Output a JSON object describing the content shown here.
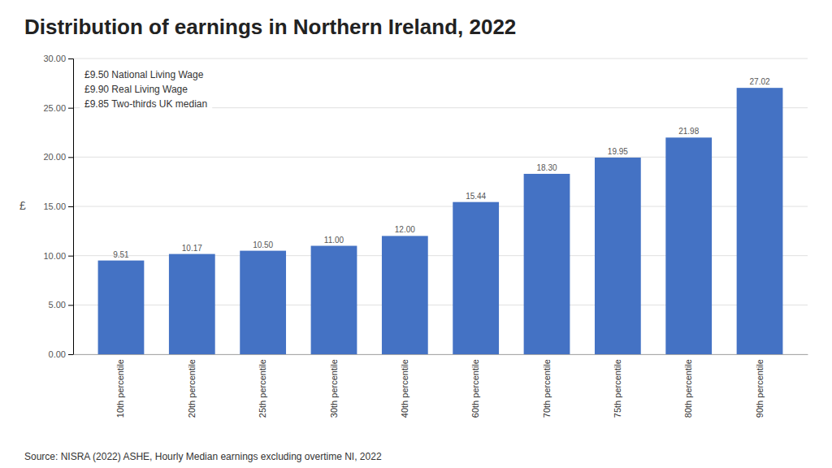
{
  "chart_data": {
    "type": "bar",
    "title": "Distribution of earnings in Northern Ireland, 2022",
    "categories": [
      "10th percentile",
      "20th percentile",
      "25th percentile",
      "30th percentile",
      "40th percentile",
      "60th percentile",
      "70th percentile",
      "75th percentile",
      "80th percentile",
      "90th percentile"
    ],
    "values": [
      9.51,
      10.17,
      10.5,
      11.0,
      12.0,
      15.44,
      18.3,
      19.95,
      21.98,
      27.02
    ],
    "value_labels": [
      "9.51",
      "10.17",
      "10.50",
      "11.00",
      "12.00",
      "15.44",
      "18.30",
      "19.95",
      "21.98",
      "27.02"
    ],
    "data_labels": true,
    "color": "#4472c4",
    "ylabel": "£",
    "ylim": [
      0,
      30
    ],
    "yticks": [
      {
        "value": 0,
        "label": "0.00"
      },
      {
        "value": 5,
        "label": "5.00"
      },
      {
        "value": 10,
        "label": "10.00"
      },
      {
        "value": 15,
        "label": "15.00"
      },
      {
        "value": 20,
        "label": "20.00"
      },
      {
        "value": 25,
        "label": "25.00"
      },
      {
        "value": 30,
        "label": "30.00"
      }
    ],
    "grid": true,
    "annotations": [
      "£9.50 National Living Wage",
      "£9.90 Real Living Wage",
      "£9.85 Two-thirds UK median"
    ],
    "source": "Source: NISRA (2022) ASHE, Hourly Median earnings excluding overtime NI, 2022"
  }
}
